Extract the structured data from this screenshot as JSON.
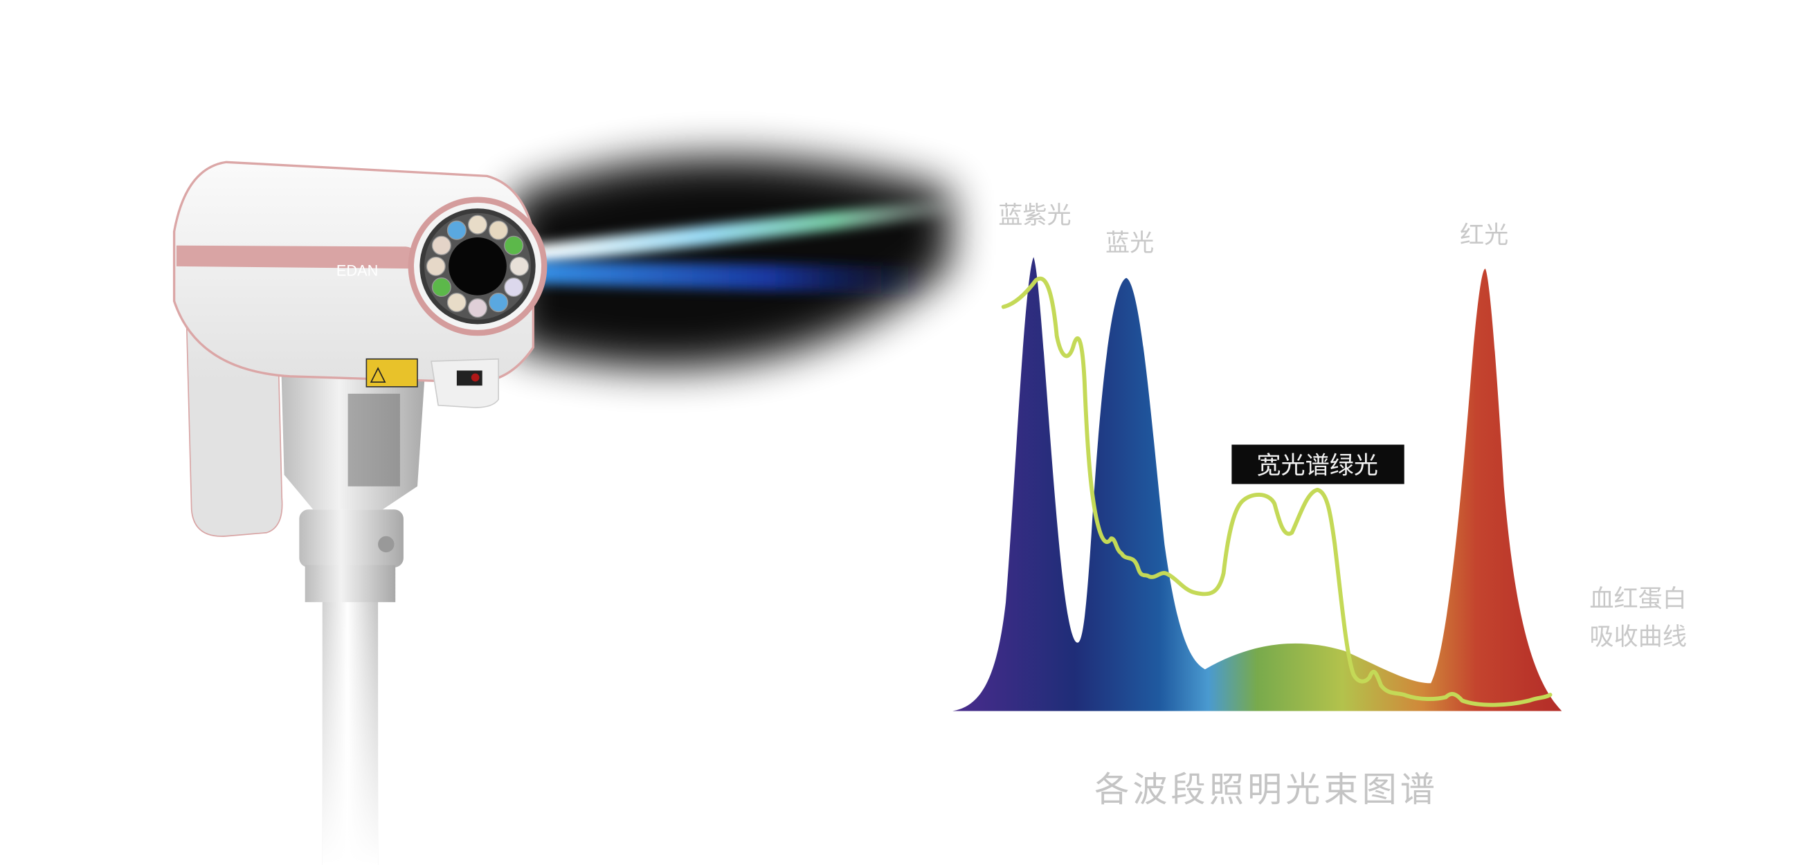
{
  "device": {
    "brand_logo": "EDAN",
    "led_colors": [
      "#5aa8e0",
      "#e8dcc8",
      "#e6d8c0",
      "#5cb84a",
      "#e8e0d8",
      "#dcd8ec",
      "#5aa8e0",
      "#e0d0d8",
      "#e8dcc8",
      "#5cb84a",
      "#e6d8c8",
      "#e4d4c8"
    ]
  },
  "diagram": {
    "peak_labels": {
      "violet": "蓝紫光",
      "blue": "蓝光",
      "red": "红光"
    },
    "green_band_label": "宽光谱绿光",
    "curve_label_line1": "血红蛋白",
    "curve_label_line2": "吸收曲线",
    "caption": "各波段照明光束图谱",
    "colors": {
      "violet": "#3b2a86",
      "blue": "#1f5aa0",
      "green": "#8ab84a",
      "red": "#c0392b",
      "absorption_curve": "#c4d957",
      "label_box": "#0c0c0c"
    }
  }
}
